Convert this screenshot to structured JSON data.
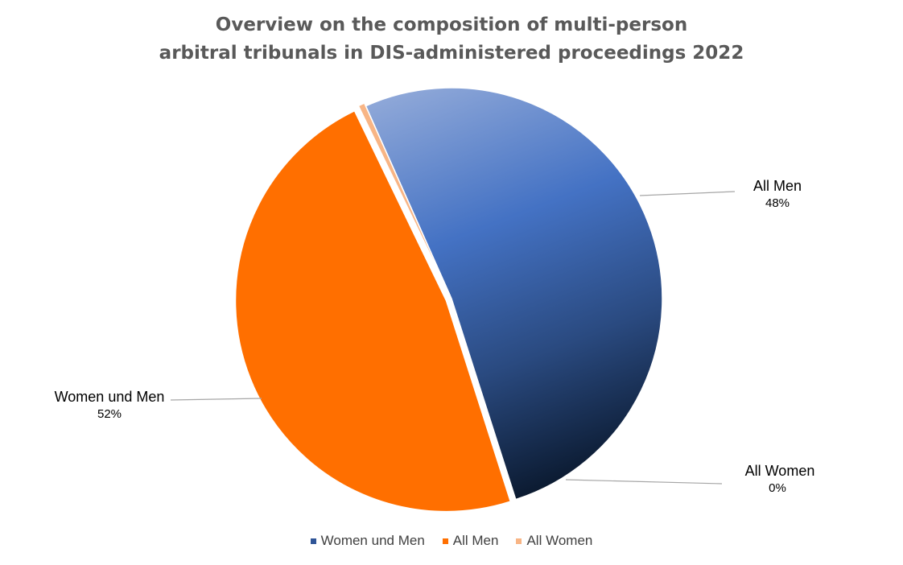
{
  "chart_data": {
    "type": "pie",
    "title_lines": [
      "Overview on the composition of multi-person",
      "arbitral tribunals in DIS-administered proceedings 2022"
    ],
    "slices": [
      {
        "label": "Women und Men",
        "value": 52,
        "percent_label": "52%",
        "color": "#2f5597"
      },
      {
        "label": "All Men",
        "value": 48,
        "percent_label": "48%",
        "color": "#ff6f00"
      },
      {
        "label": "All Women",
        "value": 0.5,
        "percent_label": "0%",
        "color": "#f8b585"
      }
    ],
    "legend_position": "bottom"
  }
}
